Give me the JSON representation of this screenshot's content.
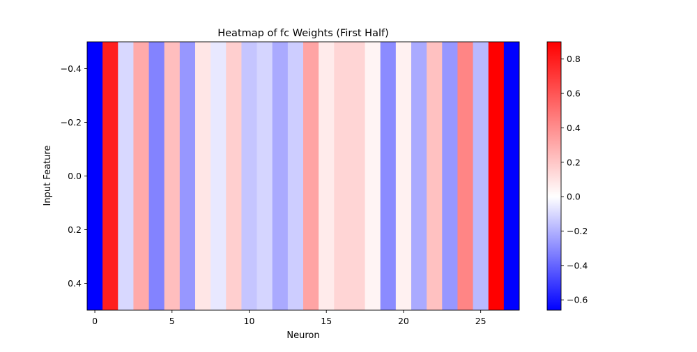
{
  "chart_data": {
    "type": "heatmap",
    "title": "Heatmap of fc Weights (First Half)",
    "xlabel": "Neuron",
    "ylabel": "Input Feature",
    "colormap": "bwr",
    "rows": 1,
    "values": [
      -0.66,
      0.79,
      -0.1,
      0.3,
      -0.32,
      0.23,
      -0.27,
      0.09,
      -0.06,
      0.17,
      -0.15,
      -0.11,
      -0.22,
      -0.13,
      0.32,
      0.07,
      0.15,
      0.15,
      0.04,
      -0.3,
      0.05,
      -0.22,
      0.22,
      -0.27,
      0.43,
      -0.18,
      0.9,
      -0.66
    ],
    "xlim": [
      -0.5,
      27.5
    ],
    "ylim": [
      0.5,
      -0.5
    ],
    "x_ticks": [
      0,
      5,
      10,
      15,
      20,
      25
    ],
    "x_tick_labels": [
      "0",
      "5",
      "10",
      "15",
      "20",
      "25"
    ],
    "y_ticks": [
      -0.4,
      -0.2,
      0.0,
      0.2,
      0.4
    ],
    "y_tick_labels": [
      "−0.4",
      "−0.2",
      "0.0",
      "0.2",
      "0.4"
    ],
    "colorbar": {
      "min": -0.66,
      "max": 0.9,
      "ticks": [
        -0.6,
        -0.4,
        -0.2,
        0.0,
        0.2,
        0.4,
        0.6,
        0.8
      ],
      "tick_labels": [
        "−0.6",
        "−0.4",
        "−0.2",
        "0.0",
        "0.2",
        "0.4",
        "0.6",
        "0.8"
      ]
    },
    "grid": false,
    "legend": "none"
  }
}
